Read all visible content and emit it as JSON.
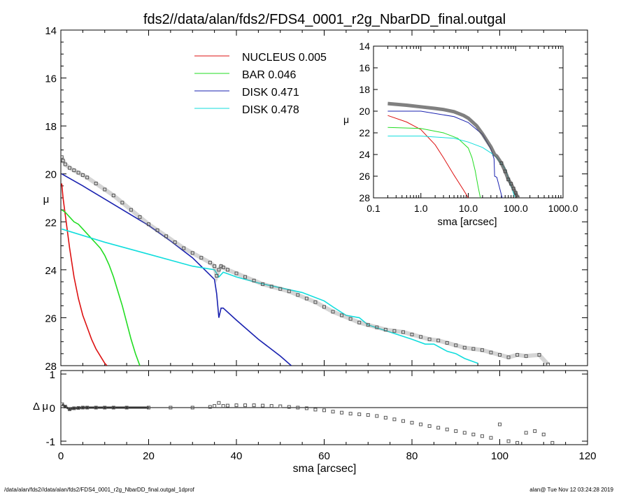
{
  "title": "fds2//data/alan/fds2/FDS4_0001_r2g_NbarDD_final.outgal",
  "footer_left": "/data/alan/fds2//data/alan/fds2/FDS4_0001_r2g_NbarDD_final.outgal_1dprof",
  "footer_right": "alan@  Tue Nov 12 03:24:28 2019",
  "colors": {
    "nucleus": "#dd1111",
    "bar": "#22dd22",
    "disk1": "#1a22b0",
    "disk2": "#11dddd",
    "data": "#555555"
  },
  "chart_data": [
    {
      "type": "line",
      "panel": "main",
      "xlabel": "sma [arcsec]",
      "ylabel": "μ",
      "xlim": [
        0,
        120
      ],
      "ylim": [
        28,
        14
      ],
      "yticks": [
        "14",
        "16",
        "18",
        "20",
        "22",
        "24",
        "26",
        "28"
      ],
      "legend_position": "top-center",
      "legend": [
        {
          "name": "NUCLEUS",
          "value": "0.005",
          "color": "#dd1111"
        },
        {
          "name": "BAR",
          "value": "0.046",
          "color": "#22dd22"
        },
        {
          "name": "DISK",
          "value": "0.471",
          "color": "#1a22b0"
        },
        {
          "name": "DISK",
          "value": "0.478",
          "color": "#11dddd"
        }
      ],
      "series": [
        {
          "key": "nucleus",
          "x": [
            0.2,
            0.5,
            1,
            2,
            3,
            4,
            5,
            6,
            7,
            8,
            9,
            10,
            10.5
          ],
          "y": [
            20.4,
            21.0,
            21.7,
            23.1,
            24.3,
            25.2,
            25.9,
            26.4,
            26.9,
            27.3,
            27.6,
            27.9,
            28.0
          ]
        },
        {
          "key": "bar",
          "x": [
            0.2,
            1,
            2,
            3,
            4,
            5,
            6,
            7,
            8,
            9,
            10,
            11,
            12,
            13,
            14,
            15,
            16,
            17,
            18
          ],
          "y": [
            21.5,
            21.6,
            21.8,
            22.0,
            22.1,
            22.3,
            22.5,
            22.7,
            22.9,
            23.1,
            23.4,
            23.8,
            24.3,
            24.9,
            25.5,
            26.2,
            26.9,
            27.5,
            28.0
          ]
        },
        {
          "key": "disk1",
          "x": [
            0.2,
            5,
            10,
            15,
            20,
            25,
            30,
            35,
            35.5,
            36,
            36.5,
            37,
            40,
            45,
            50,
            52.5
          ],
          "y": [
            20.0,
            20.5,
            21.05,
            21.6,
            22.15,
            22.8,
            23.5,
            24.4,
            25.0,
            26.0,
            25.6,
            25.6,
            26.1,
            26.9,
            27.6,
            28.0
          ]
        },
        {
          "key": "disk2",
          "x": [
            0.2,
            10,
            20,
            30,
            35,
            36,
            37,
            40,
            45,
            50,
            55,
            60,
            62,
            65,
            68,
            70,
            75,
            80,
            83,
            85,
            88,
            90,
            92,
            95
          ],
          "y": [
            22.3,
            22.85,
            23.35,
            23.85,
            24.0,
            24.3,
            24.1,
            24.3,
            24.55,
            24.75,
            24.95,
            25.3,
            25.55,
            25.9,
            26.0,
            26.3,
            26.6,
            26.9,
            27.1,
            27.1,
            27.4,
            27.5,
            27.7,
            27.9
          ]
        },
        {
          "key": "data",
          "x": [
            0.2,
            0.5,
            1,
            2,
            3,
            4,
            5,
            6,
            8,
            10,
            12,
            14,
            16,
            18,
            20,
            22,
            24,
            26,
            28,
            30,
            32,
            34,
            35,
            35.5,
            36,
            36.5,
            37,
            38,
            40,
            42,
            44,
            46,
            48,
            50,
            52,
            54,
            56,
            58,
            60,
            62,
            64,
            66,
            68,
            70,
            72,
            74,
            76,
            78,
            80,
            82,
            84,
            86,
            88,
            90,
            92,
            94,
            96,
            98,
            100,
            102,
            104,
            106,
            109,
            111
          ],
          "y": [
            19.3,
            19.45,
            19.6,
            19.75,
            19.85,
            19.95,
            20.05,
            20.15,
            20.4,
            20.65,
            20.9,
            21.2,
            21.5,
            21.8,
            22.1,
            22.35,
            22.6,
            22.85,
            23.1,
            23.3,
            23.5,
            23.7,
            23.85,
            24.25,
            24.0,
            23.85,
            23.9,
            24.0,
            24.15,
            24.3,
            24.45,
            24.6,
            24.7,
            24.8,
            24.9,
            25.05,
            25.2,
            25.35,
            25.55,
            25.75,
            25.9,
            26.05,
            26.2,
            26.3,
            26.4,
            26.5,
            26.55,
            26.6,
            26.7,
            26.8,
            26.9,
            26.95,
            27.05,
            27.15,
            27.25,
            27.3,
            27.35,
            27.45,
            27.55,
            27.65,
            27.55,
            27.6,
            27.55,
            27.95
          ]
        }
      ]
    },
    {
      "type": "scatter",
      "panel": "residual",
      "xlabel": "sma [arcsec]",
      "ylabel": "Δ μ",
      "xlim": [
        0,
        120
      ],
      "xticks": [
        "0",
        "20",
        "40",
        "60",
        "80",
        "100",
        "120"
      ],
      "ylim": [
        -1.1,
        1.1
      ],
      "yticks": [
        "1",
        "0",
        "-1"
      ],
      "x": [
        0.3,
        1,
        2,
        3,
        4,
        5,
        6,
        8,
        10,
        12,
        15,
        20,
        25,
        30,
        34,
        35,
        36,
        37,
        38,
        40,
        42,
        44,
        46,
        48,
        50,
        52,
        54,
        56,
        58,
        60,
        62,
        64,
        66,
        68,
        70,
        72,
        74,
        76,
        78,
        80,
        82,
        84,
        86,
        88,
        90,
        92,
        94,
        96,
        98,
        100,
        102,
        104,
        106,
        108,
        110,
        112
      ],
      "y": [
        0.1,
        0.03,
        -0.05,
        -0.02,
        -0.01,
        0.0,
        0.0,
        0.0,
        0.0,
        0.0,
        0.0,
        0.0,
        0.0,
        0.0,
        0.02,
        0.05,
        0.14,
        0.05,
        0.06,
        0.07,
        0.07,
        0.07,
        0.06,
        0.05,
        0.04,
        0.02,
        0.0,
        -0.02,
        -0.06,
        -0.08,
        -0.12,
        -0.15,
        -0.18,
        -0.2,
        -0.22,
        -0.25,
        -0.3,
        -0.35,
        -0.4,
        -0.45,
        -0.5,
        -0.55,
        -0.6,
        -0.65,
        -0.7,
        -0.75,
        -0.8,
        -0.85,
        -0.9,
        -0.5,
        -1.0,
        -1.05,
        -0.75,
        -0.7,
        -0.8,
        -1.05
      ]
    },
    {
      "type": "line",
      "panel": "inset",
      "xlabel": "sma [arcsec]",
      "ylabel": "μ",
      "xscale": "log",
      "xlim": [
        0.1,
        1000
      ],
      "xticks": [
        "0.1",
        "1.0",
        "10.0",
        "100.0",
        "1000.0"
      ],
      "ylim": [
        28,
        14
      ],
      "yticks": [
        "14",
        "16",
        "18",
        "20",
        "22",
        "24",
        "26",
        "28"
      ],
      "series": [
        {
          "key": "nucleus",
          "x": [
            0.2,
            0.5,
            1,
            2,
            3,
            5,
            8,
            10
          ],
          "y": [
            20.4,
            21.0,
            21.7,
            23.1,
            24.3,
            25.9,
            27.3,
            28.0
          ]
        },
        {
          "key": "bar",
          "x": [
            0.2,
            1,
            3,
            6,
            10,
            12,
            14,
            16,
            18
          ],
          "y": [
            21.5,
            21.6,
            22.0,
            22.5,
            23.4,
            24.3,
            25.5,
            26.9,
            28.0
          ]
        },
        {
          "key": "disk1",
          "x": [
            0.2,
            1,
            5,
            10,
            20,
            30,
            35,
            36,
            40,
            52
          ],
          "y": [
            20.0,
            20.0,
            20.5,
            21.05,
            22.15,
            23.5,
            24.4,
            26.0,
            26.1,
            28.0
          ]
        },
        {
          "key": "disk2",
          "x": [
            0.2,
            1,
            5,
            10,
            20,
            30,
            40,
            60,
            80,
            95
          ],
          "y": [
            22.3,
            22.3,
            22.5,
            22.85,
            23.35,
            23.85,
            24.3,
            25.3,
            26.9,
            27.9
          ]
        },
        {
          "key": "data",
          "x": [
            0.2,
            0.5,
            1,
            2,
            3,
            5,
            8,
            10,
            15,
            20,
            30,
            36,
            40,
            50,
            60,
            70,
            80,
            90,
            100,
            110
          ],
          "y": [
            19.3,
            19.45,
            19.6,
            19.75,
            19.85,
            20.05,
            20.4,
            20.65,
            21.35,
            22.1,
            23.3,
            24.0,
            24.15,
            24.8,
            25.55,
            26.3,
            26.7,
            27.15,
            27.55,
            27.95
          ]
        }
      ]
    }
  ]
}
